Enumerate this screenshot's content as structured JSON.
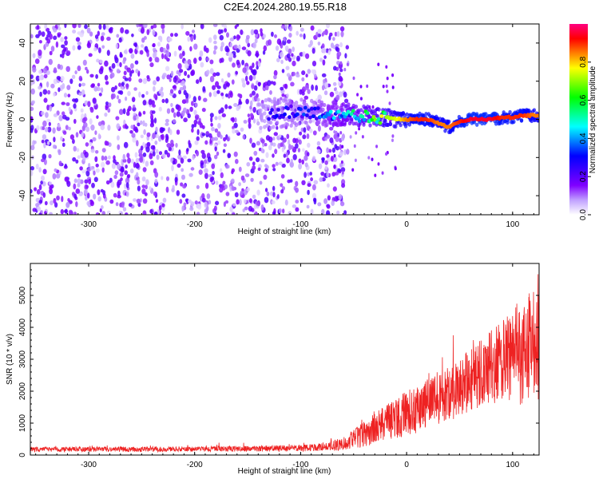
{
  "title": "C2E4.2024.280.19.55.R18",
  "chart_data": [
    {
      "type": "heatmap",
      "xlabel": "Height of straight line (km)",
      "ylabel": "Frequency (Hz)",
      "xlim": [
        -355,
        125
      ],
      "ylim": [
        -50,
        50
      ],
      "x_ticks": [
        -300,
        -200,
        -100,
        0,
        100
      ],
      "y_ticks": [
        -40,
        -20,
        0,
        20,
        40
      ],
      "colorbar": {
        "label": "Normalized spectral amplitude",
        "range": [
          0,
          1
        ],
        "ticks": [
          "0.0",
          "0.2",
          "0.4",
          "0.6",
          "0.8"
        ],
        "colors": [
          "#ffffff",
          "#c0a0ff",
          "#8000ff",
          "#4000ff",
          "#0000ff",
          "#0080ff",
          "#00ffff",
          "#00ff80",
          "#00ff00",
          "#80ff00",
          "#ffff00",
          "#ff8000",
          "#ff0000",
          "#ff0080"
        ]
      },
      "ridge": {
        "x": [
          -130,
          -110,
          -90,
          -70,
          -50,
          -40,
          -30,
          -20,
          -10,
          0,
          10,
          20,
          30,
          40,
          50,
          60,
          70,
          80,
          90,
          100,
          110,
          120
        ],
        "freq": [
          3,
          4,
          3,
          3,
          2,
          2,
          1,
          1,
          0,
          0,
          0,
          0,
          -2,
          -4,
          -1,
          0,
          0,
          0,
          1,
          1,
          2,
          2
        ],
        "amplitude": [
          0.25,
          0.3,
          0.3,
          0.4,
          0.5,
          0.55,
          0.6,
          0.7,
          0.75,
          0.85,
          0.9,
          0.9,
          0.85,
          0.85,
          0.9,
          0.95,
          0.95,
          0.95,
          0.9,
          0.9,
          0.9,
          0.85
        ]
      },
      "noise_field": {
        "x_range": [
          -355,
          -70
        ],
        "freq_range": [
          -50,
          50
        ],
        "amplitude": 0.2
      }
    },
    {
      "type": "line",
      "xlabel": "Height of straight line (km)",
      "ylabel": "SNR (10 * v/v)",
      "xlim": [
        -355,
        125
      ],
      "ylim": [
        0,
        6000
      ],
      "x_ticks": [
        -300,
        -200,
        -100,
        0,
        100
      ],
      "y_ticks": [
        0,
        1000,
        2000,
        3000,
        4000,
        5000
      ],
      "color": "#ee2222",
      "x": [
        -355,
        -300,
        -250,
        -200,
        -150,
        -100,
        -80,
        -60,
        -50,
        -40,
        -30,
        -20,
        -10,
        0,
        10,
        20,
        30,
        40,
        50,
        60,
        70,
        80,
        90,
        100,
        110,
        125
      ],
      "y": [
        180,
        180,
        180,
        190,
        200,
        210,
        250,
        350,
        500,
        650,
        800,
        1000,
        1150,
        1300,
        1450,
        1600,
        1800,
        1950,
        2150,
        2350,
        2550,
        2750,
        2950,
        3150,
        3250,
        3350
      ],
      "spread": [
        80,
        80,
        80,
        80,
        90,
        100,
        120,
        200,
        300,
        400,
        500,
        600,
        650,
        700,
        750,
        800,
        850,
        900,
        950,
        1000,
        1100,
        1200,
        1300,
        1500,
        1700,
        1900
      ]
    }
  ]
}
